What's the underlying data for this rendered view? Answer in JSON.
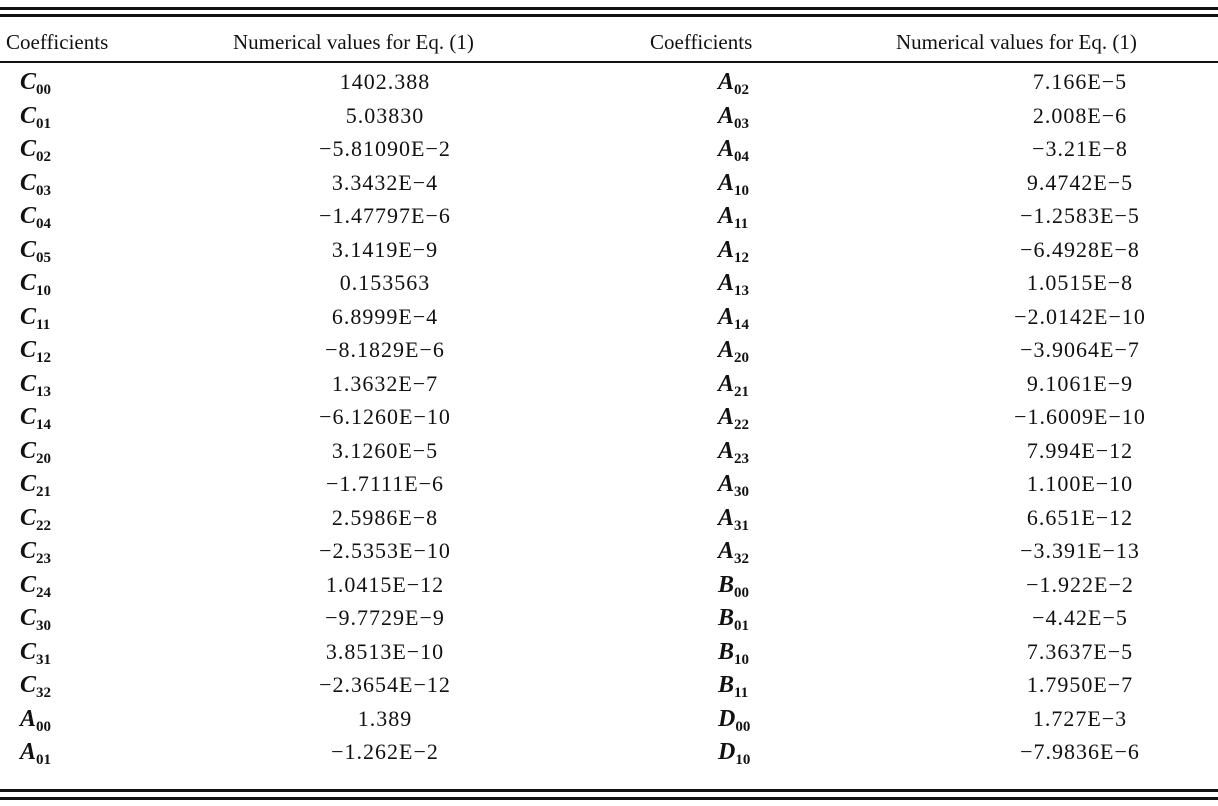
{
  "table": {
    "headers": [
      "Coefficients",
      "Numerical values for Eq. (1)",
      "Coefficients",
      "Numerical values for Eq. (1)"
    ],
    "rows": [
      {
        "sym1": "C",
        "sub1": "00",
        "val1": "1402.388",
        "sym2": "A",
        "sub2": "02",
        "val2": "7.166E−5"
      },
      {
        "sym1": "C",
        "sub1": "01",
        "val1": "5.03830",
        "sym2": "A",
        "sub2": "03",
        "val2": "2.008E−6"
      },
      {
        "sym1": "C",
        "sub1": "02",
        "val1": "−5.81090E−2",
        "sym2": "A",
        "sub2": "04",
        "val2": "−3.21E−8"
      },
      {
        "sym1": "C",
        "sub1": "03",
        "val1": "3.3432E−4",
        "sym2": "A",
        "sub2": "10",
        "val2": "9.4742E−5"
      },
      {
        "sym1": "C",
        "sub1": "04",
        "val1": "−1.47797E−6",
        "sym2": "A",
        "sub2": "11",
        "val2": "−1.2583E−5"
      },
      {
        "sym1": "C",
        "sub1": "05",
        "val1": "3.1419E−9",
        "sym2": "A",
        "sub2": "12",
        "val2": "−6.4928E−8"
      },
      {
        "sym1": "C",
        "sub1": "10",
        "val1": "0.153563",
        "sym2": "A",
        "sub2": "13",
        "val2": "1.0515E−8"
      },
      {
        "sym1": "C",
        "sub1": "11",
        "val1": "6.8999E−4",
        "sym2": "A",
        "sub2": "14",
        "val2": "−2.0142E−10"
      },
      {
        "sym1": "C",
        "sub1": "12",
        "val1": "−8.1829E−6",
        "sym2": "A",
        "sub2": "20",
        "val2": "−3.9064E−7"
      },
      {
        "sym1": "C",
        "sub1": "13",
        "val1": "1.3632E−7",
        "sym2": "A",
        "sub2": "21",
        "val2": "9.1061E−9"
      },
      {
        "sym1": "C",
        "sub1": "14",
        "val1": "−6.1260E−10",
        "sym2": "A",
        "sub2": "22",
        "val2": "−1.6009E−10"
      },
      {
        "sym1": "C",
        "sub1": "20",
        "val1": "3.1260E−5",
        "sym2": "A",
        "sub2": "23",
        "val2": "7.994E−12"
      },
      {
        "sym1": "C",
        "sub1": "21",
        "val1": "−1.7111E−6",
        "sym2": "A",
        "sub2": "30",
        "val2": "1.100E−10"
      },
      {
        "sym1": "C",
        "sub1": "22",
        "val1": "2.5986E−8",
        "sym2": "A",
        "sub2": "31",
        "val2": "6.651E−12"
      },
      {
        "sym1": "C",
        "sub1": "23",
        "val1": "−2.5353E−10",
        "sym2": "A",
        "sub2": "32",
        "val2": "−3.391E−13"
      },
      {
        "sym1": "C",
        "sub1": "24",
        "val1": "1.0415E−12",
        "sym2": "B",
        "sub2": "00",
        "val2": "−1.922E−2"
      },
      {
        "sym1": "C",
        "sub1": "30",
        "val1": "−9.7729E−9",
        "sym2": "B",
        "sub2": "01",
        "val2": "−4.42E−5"
      },
      {
        "sym1": "C",
        "sub1": "31",
        "val1": "3.8513E−10",
        "sym2": "B",
        "sub2": "10",
        "val2": "7.3637E−5"
      },
      {
        "sym1": "C",
        "sub1": "32",
        "val1": "−2.3654E−12",
        "sym2": "B",
        "sub2": "11",
        "val2": "1.7950E−7"
      },
      {
        "sym1": "A",
        "sub1": "00",
        "val1": "1.389",
        "sym2": "D",
        "sub2": "00",
        "val2": "1.727E−3"
      },
      {
        "sym1": "A",
        "sub1": "01",
        "val1": "−1.262E−2",
        "sym2": "D",
        "sub2": "10",
        "val2": "−7.9836E−6"
      }
    ]
  }
}
